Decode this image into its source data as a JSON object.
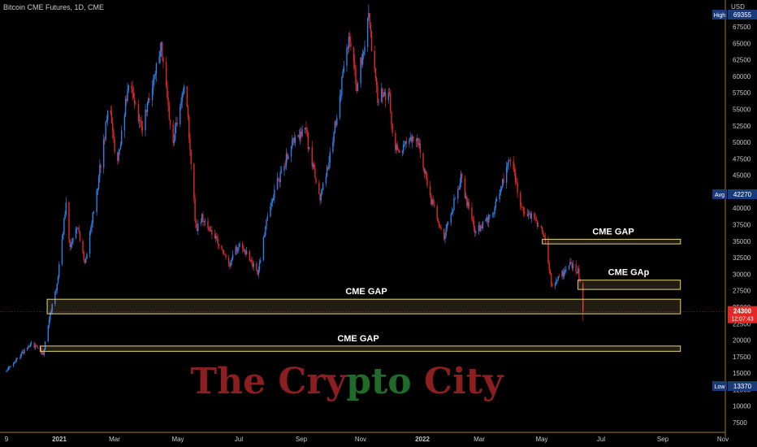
{
  "header": {
    "title": "Bitcoin CME Futures, 1D, CME",
    "currency": "USD"
  },
  "watermark": {
    "parts": [
      {
        "text": "The Cry",
        "color": "#8b1e1e"
      },
      {
        "text": "pto",
        "color": "#1e6b2a"
      },
      {
        "text": " City",
        "color": "#8b1e1e"
      }
    ]
  },
  "colors": {
    "up": "#2f7fe8",
    "down": "#e02828",
    "gap_fill": "#ffe38a",
    "gap_stroke": "#e8d47a",
    "axis_text": "#c8c8c8",
    "axis_line": "#9a7a2a",
    "label_box": "#1a3a7a",
    "current_price": "#e02828"
  },
  "chart_data": {
    "type": "candlestick",
    "title": "Bitcoin CME Futures, 1D, CME",
    "x_ticks": [
      "9",
      "2021",
      "Mar",
      "May",
      "Jul",
      "Sep",
      "Nov",
      "2022",
      "Mar",
      "May",
      "Jul",
      "Sep",
      "Nov"
    ],
    "y_ticks": [
      7500,
      10000,
      12500,
      15000,
      17500,
      20000,
      22500,
      25000,
      27500,
      30000,
      32500,
      35000,
      37500,
      40000,
      42500,
      45000,
      47500,
      50000,
      52500,
      55000,
      57500,
      60000,
      62500,
      65000,
      67500
    ],
    "ylim": [
      5500,
      69500
    ],
    "price_path": [
      {
        "date": "2020-11-09",
        "price": 15300
      },
      {
        "date": "2020-11-25",
        "price": 18200
      },
      {
        "date": "2020-12-05",
        "price": 19400
      },
      {
        "date": "2020-12-16",
        "price": 17900
      },
      {
        "date": "2020-12-22",
        "price": 23200
      },
      {
        "date": "2020-12-30",
        "price": 28400
      },
      {
        "date": "2021-01-08",
        "price": 40500
      },
      {
        "date": "2021-01-12",
        "price": 34000
      },
      {
        "date": "2021-01-20",
        "price": 37000
      },
      {
        "date": "2021-01-27",
        "price": 32000
      },
      {
        "date": "2021-02-05",
        "price": 39500
      },
      {
        "date": "2021-02-21",
        "price": 56500
      },
      {
        "date": "2021-02-28",
        "price": 46000
      },
      {
        "date": "2021-03-13",
        "price": 60000
      },
      {
        "date": "2021-03-25",
        "price": 52000
      },
      {
        "date": "2021-04-14",
        "price": 64500
      },
      {
        "date": "2021-04-25",
        "price": 49500
      },
      {
        "date": "2021-05-08",
        "price": 58500
      },
      {
        "date": "2021-05-13",
        "price": 49500
      },
      {
        "date": "2021-05-19",
        "price": 36500
      },
      {
        "date": "2021-05-25",
        "price": 38500
      },
      {
        "date": "2021-06-05",
        "price": 36000
      },
      {
        "date": "2021-06-22",
        "price": 31500
      },
      {
        "date": "2021-07-02",
        "price": 35000
      },
      {
        "date": "2021-07-20",
        "price": 30000
      },
      {
        "date": "2021-08-01",
        "price": 40500
      },
      {
        "date": "2021-08-23",
        "price": 49500
      },
      {
        "date": "2021-09-06",
        "price": 52000
      },
      {
        "date": "2021-09-21",
        "price": 41000
      },
      {
        "date": "2021-10-01",
        "price": 48000
      },
      {
        "date": "2021-10-20",
        "price": 65500
      },
      {
        "date": "2021-10-28",
        "price": 58500
      },
      {
        "date": "2021-11-09",
        "price": 68500
      },
      {
        "date": "2021-11-18",
        "price": 57000
      },
      {
        "date": "2021-11-30",
        "price": 57500
      },
      {
        "date": "2021-12-04",
        "price": 48500
      },
      {
        "date": "2021-12-27",
        "price": 51000
      },
      {
        "date": "2022-01-10",
        "price": 41500
      },
      {
        "date": "2022-01-24",
        "price": 35500
      },
      {
        "date": "2022-02-10",
        "price": 44500
      },
      {
        "date": "2022-02-24",
        "price": 36500
      },
      {
        "date": "2022-03-14",
        "price": 39000
      },
      {
        "date": "2022-04-01",
        "price": 47500
      },
      {
        "date": "2022-04-12",
        "price": 40000
      },
      {
        "date": "2022-04-25",
        "price": 38500
      },
      {
        "date": "2022-05-06",
        "price": 35500
      },
      {
        "date": "2022-05-12",
        "price": 28500
      },
      {
        "date": "2022-05-20",
        "price": 29500
      },
      {
        "date": "2022-06-01",
        "price": 31500
      },
      {
        "date": "2022-06-08",
        "price": 30500
      },
      {
        "date": "2022-06-10",
        "price": 28500
      },
      {
        "date": "2022-06-13",
        "price": 24300
      }
    ],
    "gaps": [
      {
        "label": "CME GAP",
        "start": "2022-05-03",
        "end": "2022-10-31",
        "low": 34600,
        "high": 35300
      },
      {
        "label": "CME GAp",
        "start": "2022-06-08",
        "end": "2022-10-31",
        "low": 27700,
        "high": 29100
      },
      {
        "label": "CME GAP",
        "start": "2020-12-20",
        "end": "2022-10-31",
        "low": 24000,
        "high": 26200
      },
      {
        "label": "CME GAP",
        "start": "2020-12-13",
        "end": "2022-10-31",
        "low": 18300,
        "high": 19100
      }
    ],
    "labels": {
      "high": {
        "text": "High",
        "value": "69355"
      },
      "avg": {
        "text": "Avg",
        "value": "42270"
      },
      "low": {
        "text": "Low",
        "value": "13370"
      },
      "current": {
        "value": "24300",
        "countdown": "12:07:43"
      }
    }
  }
}
